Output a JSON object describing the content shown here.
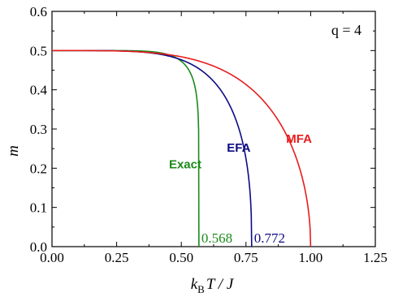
{
  "chart_data": {
    "type": "line",
    "title": "",
    "xlabel": {
      "main": "k",
      "sub": "B",
      "rest": "T / J"
    },
    "ylabel": "m",
    "xlim": [
      0.0,
      1.25
    ],
    "ylim": [
      0.0,
      0.6
    ],
    "xticks": [
      "0.00",
      "0.25",
      "0.50",
      "0.75",
      "1.00",
      "1.25"
    ],
    "yticks": [
      "0.0",
      "0.1",
      "0.2",
      "0.3",
      "0.4",
      "0.5",
      "0.6"
    ],
    "grid": false,
    "annotation": {
      "q_label": "q = 4"
    },
    "series": [
      {
        "name": "Exact",
        "color": "#1a8a1a",
        "tc": 0.568,
        "tc_label": "0.568",
        "m0": 0.5
      },
      {
        "name": "EFA",
        "color": "#0b0b85",
        "tc": 0.772,
        "tc_label": "0.772",
        "m0": 0.5
      },
      {
        "name": "MFA",
        "color": "#e81c1c",
        "tc": 1.0,
        "m0": 0.5
      }
    ]
  }
}
